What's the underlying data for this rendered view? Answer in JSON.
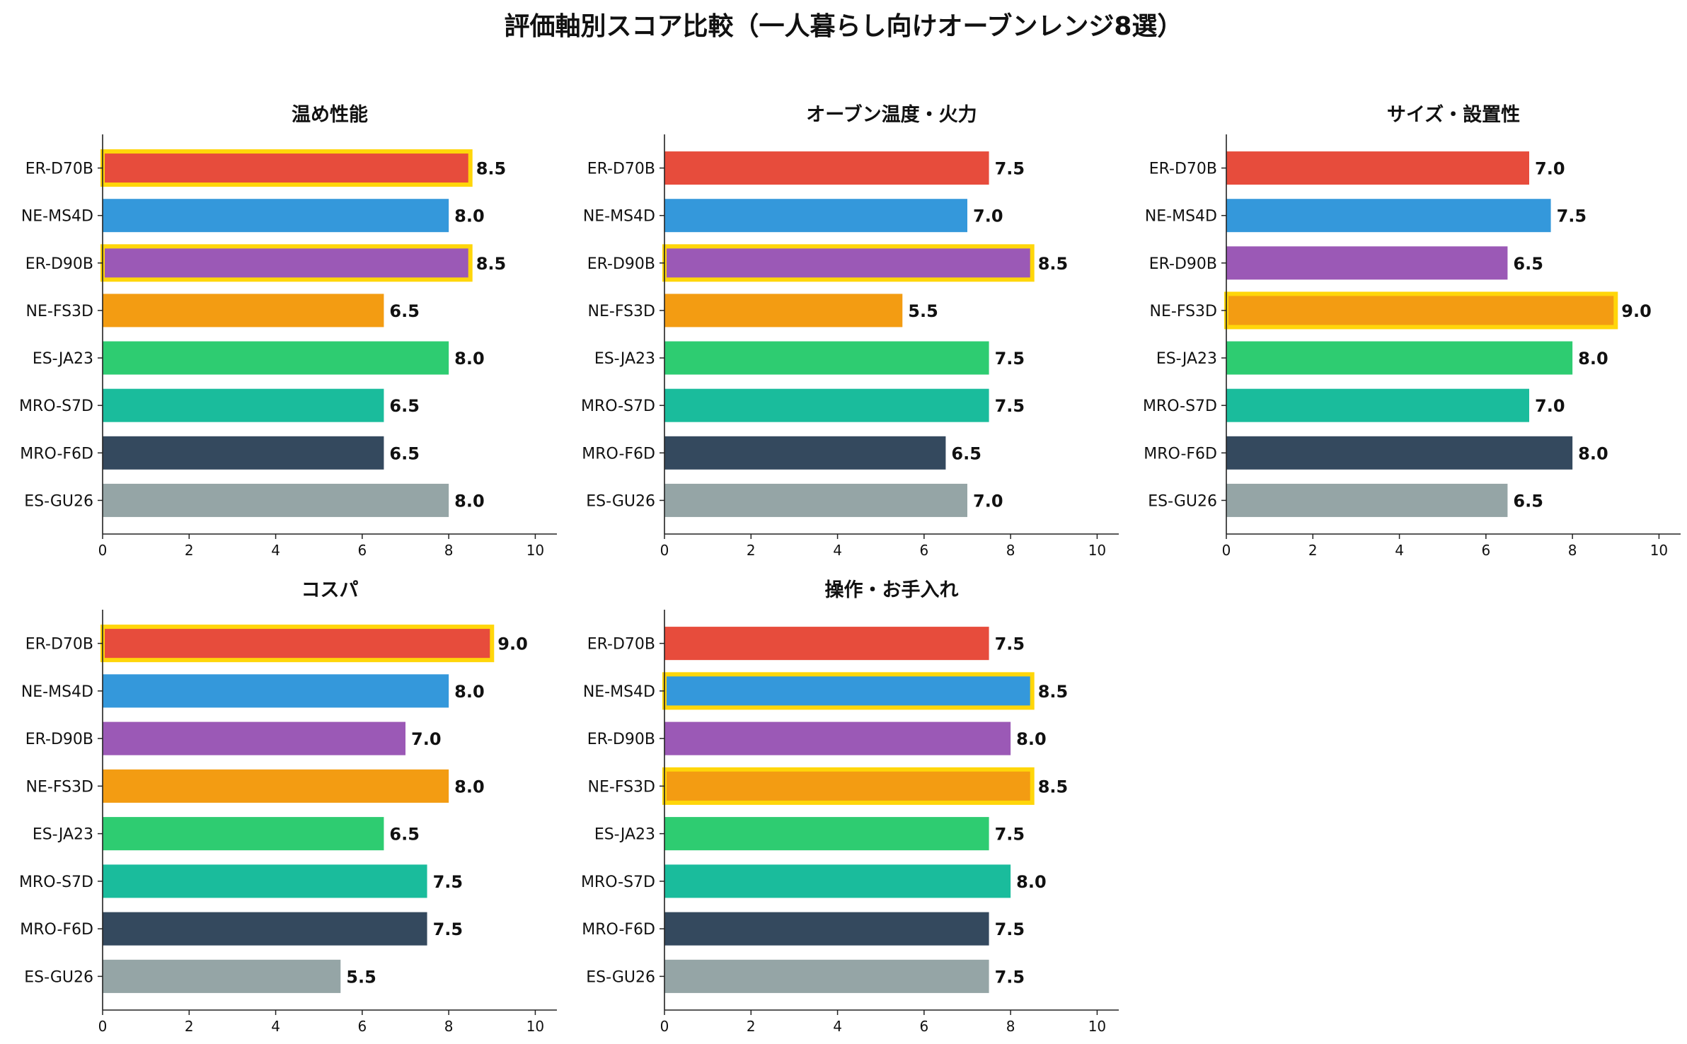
{
  "suptitle": "評価軸別スコア比較（一人暮らし向けオーブンレンジ8選）",
  "colors": {
    "models": [
      "#e74c3c",
      "#3498db",
      "#9b59b6",
      "#f39c12",
      "#2ecc71",
      "#1abc9c",
      "#34495e",
      "#95a5a6"
    ],
    "highlight": "#ffd60a",
    "text": "#111111",
    "axis": "#222222"
  },
  "chart_data": [
    {
      "type": "bar",
      "orientation": "horizontal",
      "title": "温め性能",
      "categories": [
        "ER-D70B",
        "NE-MS4D",
        "ER-D90B",
        "NE-FS3D",
        "ES-JA23",
        "MRO-S7D",
        "MRO-F6D",
        "ES-GU26"
      ],
      "values": [
        8.5,
        8.0,
        8.5,
        6.5,
        8.0,
        6.5,
        6.5,
        8.0
      ],
      "labels": [
        "8.5",
        "8.0",
        "8.5",
        "6.5",
        "8.0",
        "6.5",
        "6.5",
        "8.0"
      ],
      "highlighted": [
        "ER-D70B",
        "ER-D90B"
      ],
      "xlim": [
        0,
        10.5
      ],
      "xticks": [
        "0",
        "2",
        "4",
        "6",
        "8",
        "10"
      ]
    },
    {
      "type": "bar",
      "orientation": "horizontal",
      "title": "オーブン温度・火力",
      "categories": [
        "ER-D70B",
        "NE-MS4D",
        "ER-D90B",
        "NE-FS3D",
        "ES-JA23",
        "MRO-S7D",
        "MRO-F6D",
        "ES-GU26"
      ],
      "values": [
        7.5,
        7.0,
        8.5,
        5.5,
        7.5,
        7.5,
        6.5,
        7.0
      ],
      "labels": [
        "7.5",
        "7.0",
        "8.5",
        "5.5",
        "7.5",
        "7.5",
        "6.5",
        "7.0"
      ],
      "highlighted": [
        "ER-D90B"
      ],
      "xlim": [
        0,
        10.5
      ],
      "xticks": [
        "0",
        "2",
        "4",
        "6",
        "8",
        "10"
      ]
    },
    {
      "type": "bar",
      "orientation": "horizontal",
      "title": "サイズ・設置性",
      "categories": [
        "ER-D70B",
        "NE-MS4D",
        "ER-D90B",
        "NE-FS3D",
        "ES-JA23",
        "MRO-S7D",
        "MRO-F6D",
        "ES-GU26"
      ],
      "values": [
        7.0,
        7.5,
        6.5,
        9.0,
        8.0,
        7.0,
        8.0,
        6.5
      ],
      "labels": [
        "7.0",
        "7.5",
        "6.5",
        "9.0",
        "8.0",
        "7.0",
        "8.0",
        "6.5"
      ],
      "highlighted": [
        "NE-FS3D"
      ],
      "xlim": [
        0,
        10.5
      ],
      "xticks": [
        "0",
        "2",
        "4",
        "6",
        "8",
        "10"
      ]
    },
    {
      "type": "bar",
      "orientation": "horizontal",
      "title": "コスパ",
      "categories": [
        "ER-D70B",
        "NE-MS4D",
        "ER-D90B",
        "NE-FS3D",
        "ES-JA23",
        "MRO-S7D",
        "MRO-F6D",
        "ES-GU26"
      ],
      "values": [
        9.0,
        8.0,
        7.0,
        8.0,
        6.5,
        7.5,
        7.5,
        5.5
      ],
      "labels": [
        "9.0",
        "8.0",
        "7.0",
        "8.0",
        "6.5",
        "7.5",
        "7.5",
        "5.5"
      ],
      "highlighted": [
        "ER-D70B"
      ],
      "xlim": [
        0,
        10.5
      ],
      "xticks": [
        "0",
        "2",
        "4",
        "6",
        "8",
        "10"
      ]
    },
    {
      "type": "bar",
      "orientation": "horizontal",
      "title": "操作・お手入れ",
      "categories": [
        "ER-D70B",
        "NE-MS4D",
        "ER-D90B",
        "NE-FS3D",
        "ES-JA23",
        "MRO-S7D",
        "MRO-F6D",
        "ES-GU26"
      ],
      "values": [
        7.5,
        8.5,
        8.0,
        8.5,
        7.5,
        8.0,
        7.5,
        7.5
      ],
      "labels": [
        "7.5",
        "8.5",
        "8.0",
        "8.5",
        "7.5",
        "8.0",
        "7.5",
        "7.5"
      ],
      "highlighted": [
        "NE-MS4D",
        "NE-FS3D"
      ],
      "xlim": [
        0,
        10.5
      ],
      "xticks": [
        "0",
        "2",
        "4",
        "6",
        "8",
        "10"
      ]
    }
  ]
}
